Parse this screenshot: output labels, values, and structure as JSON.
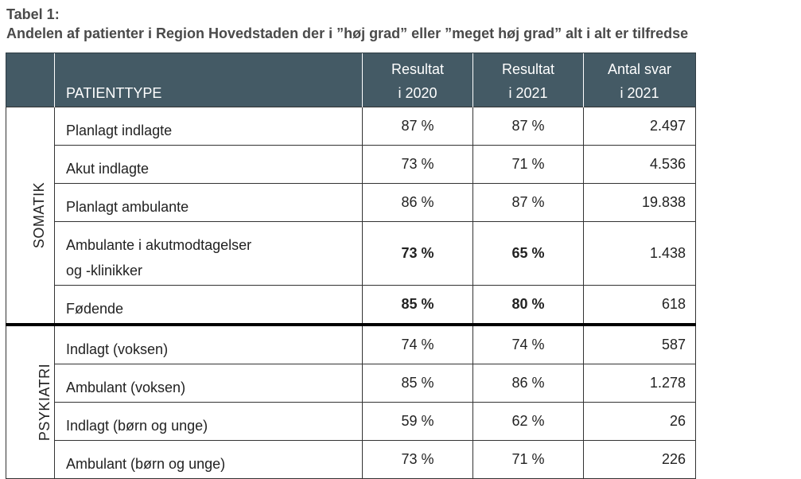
{
  "title": {
    "line1": "Tabel 1:",
    "line2": "Andelen af patienter i Region Hovedstaden der i ”høj grad” eller ”meget høj grad” alt i alt er tilfredse"
  },
  "table": {
    "header": {
      "patienttype": "PATIENTTYPE",
      "result2020_line1": "Resultat",
      "result2020_line2": "i 2020",
      "result2021_line1": "Resultat",
      "result2021_line2": "i 2021",
      "antal_line1": "Antal svar",
      "antal_line2": "i 2021"
    },
    "groups": {
      "somatik": "SOMATIK",
      "psykiatri": "PSYKIATRI"
    },
    "rows": [
      {
        "type": "Planlagt indlagte",
        "r2020": "87 %",
        "r2021": "87 %",
        "antal": "2.497"
      },
      {
        "type": "Akut indlagte",
        "r2020": "73 %",
        "r2021": "71 %",
        "antal": "4.536"
      },
      {
        "type": "Planlagt ambulante",
        "r2020": "86 %",
        "r2021": "87 %",
        "antal": "19.838"
      },
      {
        "type_line1": "Ambulante i akutmodtagelser",
        "type_line2": "og -klinikker",
        "r2020": "73 %",
        "r2021": "65 %",
        "antal": "1.438"
      },
      {
        "type": "Fødende",
        "r2020": "85 %",
        "r2021": "80 %",
        "antal": "618"
      },
      {
        "type": "Indlagt (voksen)",
        "r2020": "74 %",
        "r2021": "74 %",
        "antal": "587"
      },
      {
        "type": "Ambulant (voksen)",
        "r2020": "85 %",
        "r2021": "86 %",
        "antal": "1.278"
      },
      {
        "type": "Indlagt (børn og unge)",
        "r2020": "59 %",
        "r2021": "62 %",
        "antal": "26"
      },
      {
        "type": "Ambulant (børn og unge)",
        "r2020": "73 %",
        "r2021": "71 %",
        "antal": "226"
      }
    ]
  }
}
